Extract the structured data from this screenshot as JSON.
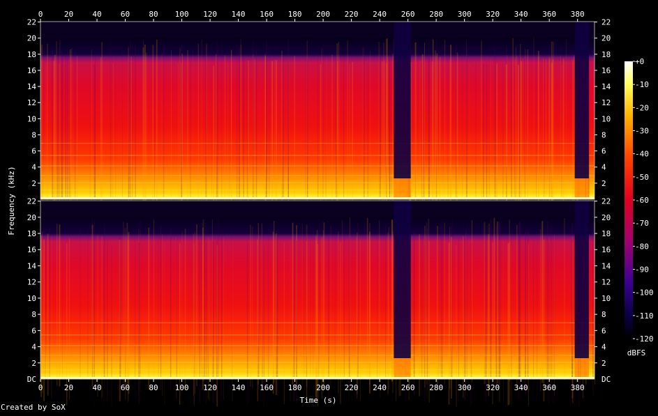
{
  "chart_data": {
    "type": "heatmap",
    "title": "",
    "xlabel": "Time (s)",
    "ylabel": "Frequency (kHz)",
    "xlim": [
      0,
      392
    ],
    "x_ticks": [
      0,
      20,
      40,
      60,
      80,
      100,
      120,
      140,
      160,
      180,
      200,
      220,
      240,
      260,
      280,
      300,
      320,
      340,
      360,
      380
    ],
    "ylim": [
      0,
      22.05
    ],
    "channels": [
      {
        "top_tick_label": "22",
        "y_ticks": [
          "2",
          "4",
          "6",
          "8",
          "10",
          "12",
          "14",
          "16",
          "18",
          "20",
          "22"
        ]
      },
      {
        "bottom_tick_label": "DC",
        "y_ticks": [
          "2",
          "4",
          "6",
          "8",
          "10",
          "12",
          "14",
          "16",
          "18",
          "20",
          "22"
        ]
      }
    ],
    "colorbar": {
      "label": "dBFS",
      "range": [
        -120,
        0
      ],
      "tick_labels": [
        "+0",
        "-10",
        "-20",
        "-30",
        "-40",
        "-50",
        "-60",
        "-70",
        "-80",
        "-90",
        "-100",
        "-110",
        "-120"
      ]
    },
    "lowpass_cutoff_khz": 20,
    "quiet_regions_s": [
      [
        250,
        262
      ],
      [
        378,
        388
      ]
    ]
  },
  "footer": {
    "credit": "Created by SoX"
  }
}
